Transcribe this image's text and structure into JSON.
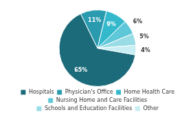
{
  "chart_data": {
    "type": "pie",
    "categories": [
      "Hospitals",
      "Physician's Office",
      "Home Health Care",
      "Nursing Home and Care Facilities",
      "Schools and Education Facilities",
      "Other"
    ],
    "values": [
      65,
      11,
      9,
      6,
      5,
      4
    ],
    "value_labels": [
      "65%",
      "11%",
      "9%",
      "6%",
      "5%",
      "4%"
    ],
    "colors": [
      "#1c6b7a",
      "#2a9aaf",
      "#33b8cc",
      "#5fc8d8",
      "#9adce6",
      "#c8eef3"
    ],
    "data_labels": true,
    "legend": "bottom"
  }
}
